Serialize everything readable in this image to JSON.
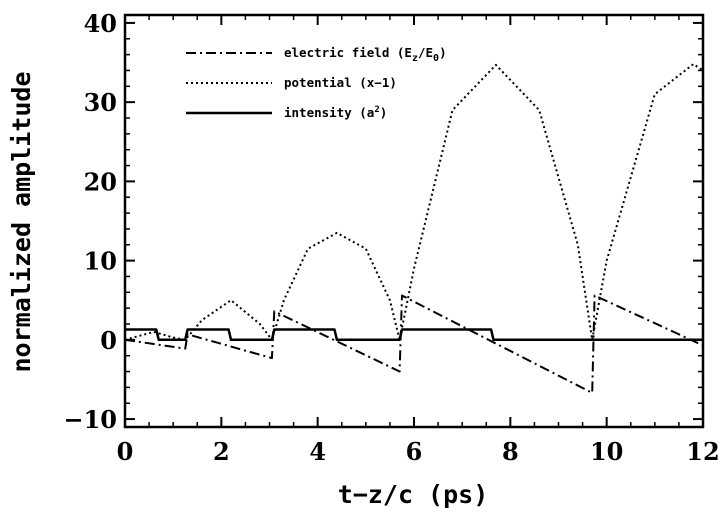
{
  "chart_data": {
    "type": "line",
    "xlabel": "t−z/c  (ps)",
    "ylabel": "normalized amplitude",
    "xlim": [
      0,
      12
    ],
    "ylim": [
      -11,
      41
    ],
    "xticks": [
      0,
      2,
      4,
      6,
      8,
      10,
      12
    ],
    "yticks": [
      -10,
      0,
      10,
      20,
      30,
      40
    ],
    "xtick_labels": [
      "0",
      "2",
      "4",
      "6",
      "8",
      "10",
      "12"
    ],
    "ytick_labels": [
      "−10",
      "0",
      "10",
      "20",
      "30",
      "40"
    ],
    "grid": false,
    "legend_position": "top-left",
    "series": [
      {
        "name": "electric field (E",
        "name_sub_z": "z",
        "name_mid": "/E",
        "name_sub_0": "0",
        "name_end": ")",
        "style": "dash-dot",
        "x": [
          0.0,
          1.25,
          1.3,
          3.05,
          3.1,
          5.7,
          5.75,
          9.7,
          9.75,
          12.0
        ],
        "y": [
          0.0,
          -1.1,
          0.7,
          -2.3,
          3.6,
          -4.0,
          5.6,
          -6.7,
          5.6,
          -0.7
        ]
      },
      {
        "name": "potential (x−1)",
        "style": "dotted",
        "x": [
          0.0,
          0.6,
          1.0,
          1.25,
          1.6,
          2.2,
          2.8,
          3.05,
          3.3,
          3.8,
          4.4,
          5.0,
          5.5,
          5.7,
          6.0,
          6.8,
          7.7,
          8.6,
          9.4,
          9.7,
          10.0,
          11.0,
          11.8,
          12.0
        ],
        "y": [
          0.0,
          1.0,
          0.3,
          0.0,
          2.5,
          5.0,
          2.0,
          0.0,
          5.0,
          11.5,
          13.5,
          11.5,
          5.0,
          0.0,
          9.0,
          29.0,
          34.7,
          29.0,
          12.0,
          0.0,
          10.0,
          31.0,
          34.8,
          34.0
        ]
      },
      {
        "name": "intensity (a",
        "name_sup": "2",
        "name_end": ")",
        "style": "solid",
        "x": [
          0.0,
          0.65,
          0.7,
          1.25,
          1.3,
          2.15,
          2.2,
          3.05,
          3.1,
          4.35,
          4.4,
          5.7,
          5.75,
          7.6,
          7.65,
          12.0
        ],
        "y": [
          1.3,
          1.3,
          0.0,
          0.0,
          1.3,
          1.3,
          0.0,
          0.0,
          1.3,
          1.3,
          0.0,
          0.0,
          1.3,
          1.3,
          0.0,
          0.0
        ]
      }
    ]
  }
}
